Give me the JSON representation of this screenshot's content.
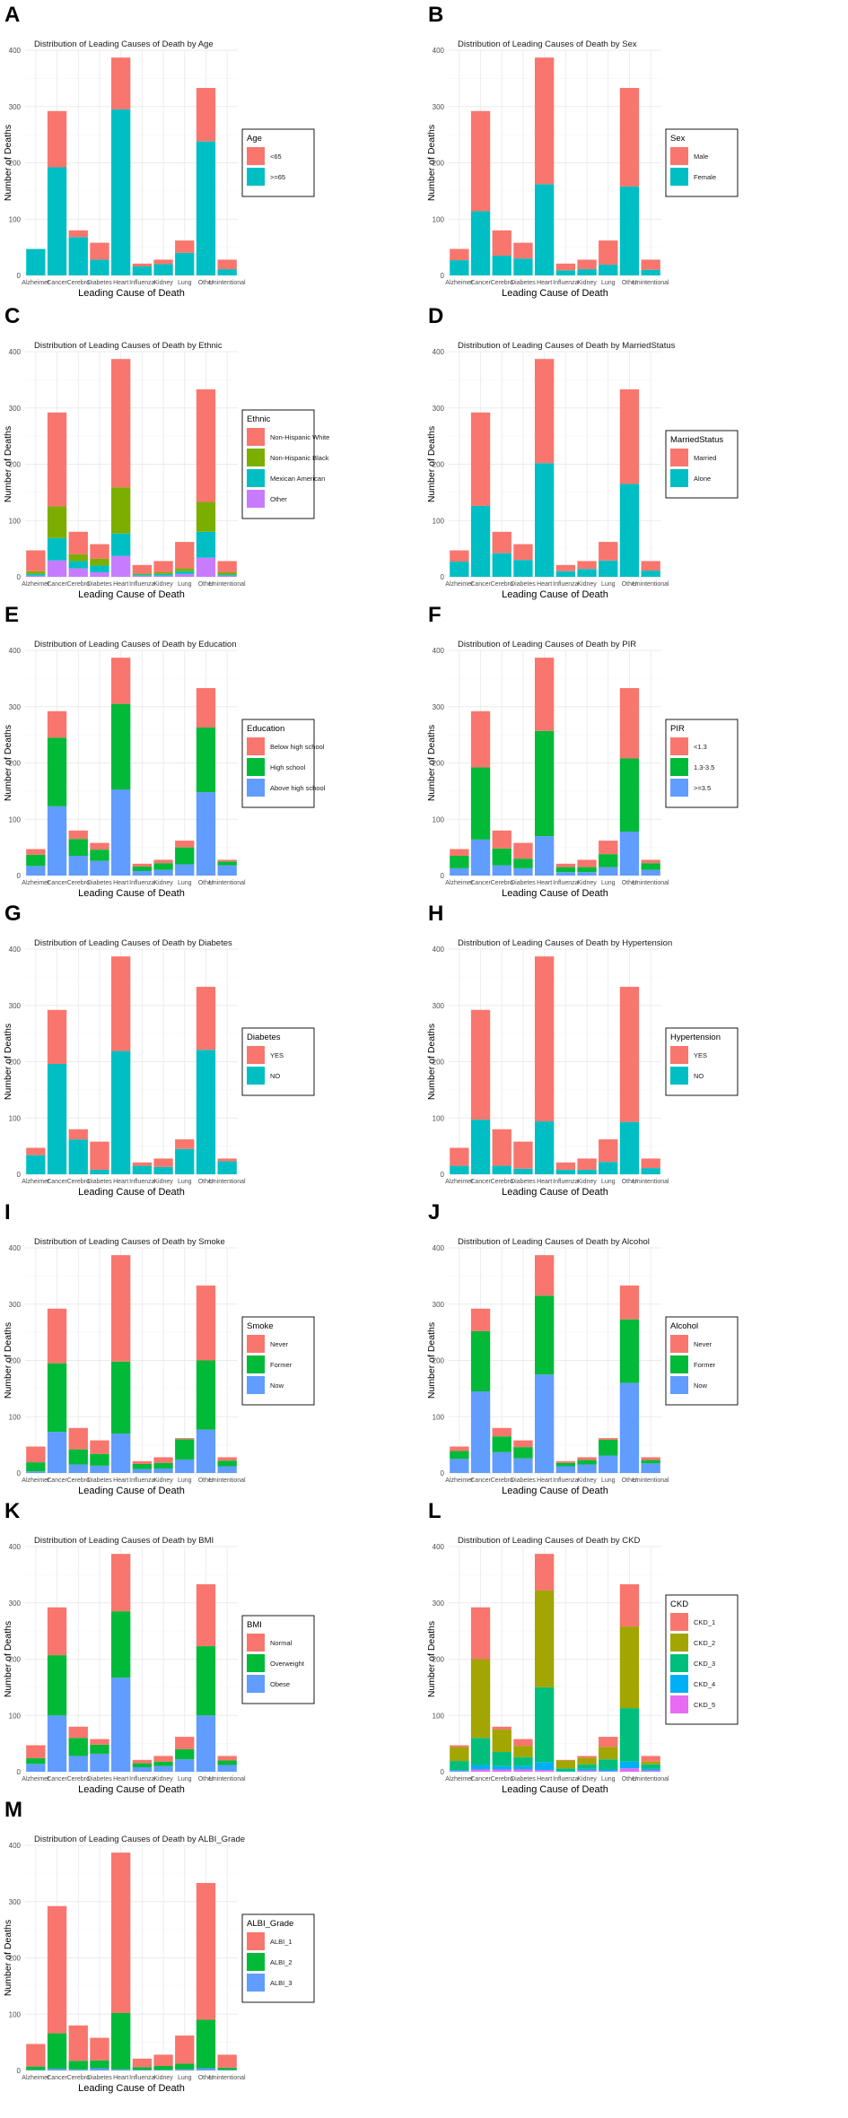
{
  "figure": {
    "y_axis_label": "Number of Deaths",
    "x_axis_label": "Leading Cause of Death"
  },
  "chart_data": [
    {
      "panel": "A",
      "type": "bar",
      "stacked": true,
      "title": "Distribution of Leading Causes of Death by Age",
      "xlabel": "Leading Cause of Death",
      "ylabel": "Number of Deaths",
      "ylim": [
        0,
        400
      ],
      "yticks": [
        0,
        100,
        200,
        300,
        400
      ],
      "categories": [
        "Alzheimer",
        "Cancer",
        "Cerebro",
        "Diabetes",
        "Heart",
        "Influenza",
        "Kidney",
        "Lung",
        "Other",
        "Unintentional"
      ],
      "legend_title": "Age",
      "series": [
        {
          "name": "<65",
          "color": "#F8766D",
          "values": [
            0,
            100,
            12,
            30,
            92,
            5,
            8,
            22,
            95,
            17
          ]
        },
        {
          "name": ">=65",
          "color": "#00BFC4",
          "values": [
            47,
            192,
            68,
            28,
            295,
            16,
            20,
            40,
            238,
            11
          ]
        }
      ]
    },
    {
      "panel": "B",
      "type": "bar",
      "stacked": true,
      "title": "Distribution of Leading Causes of Death by Sex",
      "xlabel": "Leading Cause of Death",
      "ylabel": "Number of Deaths",
      "ylim": [
        0,
        400
      ],
      "yticks": [
        0,
        100,
        200,
        300,
        400
      ],
      "categories": [
        "Alzheimer",
        "Cancer",
        "Cerebro",
        "Diabetes",
        "Heart",
        "Influenza",
        "Kidney",
        "Lung",
        "Other",
        "Unintentional"
      ],
      "legend_title": "Sex",
      "series": [
        {
          "name": "Male",
          "color": "#F8766D",
          "values": [
            20,
            178,
            45,
            28,
            225,
            12,
            17,
            43,
            175,
            18
          ]
        },
        {
          "name": "Female",
          "color": "#00BFC4",
          "values": [
            27,
            114,
            35,
            30,
            162,
            9,
            11,
            19,
            158,
            10
          ]
        }
      ]
    },
    {
      "panel": "C",
      "type": "bar",
      "stacked": true,
      "title": "Distribution of Leading Causes of Death by Ethnic",
      "xlabel": "Leading Cause of Death",
      "ylabel": "Number of Deaths",
      "ylim": [
        0,
        400
      ],
      "yticks": [
        0,
        100,
        200,
        300,
        400
      ],
      "categories": [
        "Alzheimer",
        "Cancer",
        "Cerebro",
        "Diabetes",
        "Heart",
        "Influenza",
        "Kidney",
        "Lung",
        "Other",
        "Unintentional"
      ],
      "legend_title": "Ethnic",
      "series": [
        {
          "name": "Non-Hispanic White",
          "color": "#F8766D",
          "values": [
            37,
            167,
            40,
            26,
            228,
            15,
            20,
            47,
            200,
            20
          ]
        },
        {
          "name": "Non-Hispanic Black",
          "color": "#7CAE00",
          "values": [
            5,
            56,
            12,
            12,
            82,
            2,
            3,
            5,
            53,
            4
          ]
        },
        {
          "name": "Mexican American",
          "color": "#00BFC4",
          "values": [
            3,
            40,
            13,
            12,
            40,
            2,
            3,
            5,
            46,
            2
          ]
        },
        {
          "name": "Other",
          "color": "#C77CFF",
          "values": [
            2,
            29,
            15,
            8,
            37,
            2,
            2,
            5,
            34,
            2
          ]
        }
      ]
    },
    {
      "panel": "D",
      "type": "bar",
      "stacked": true,
      "title": "Distribution of Leading Causes of Death by MarriedStatus",
      "xlabel": "Leading Cause of Death",
      "ylabel": "Number of Deaths",
      "ylim": [
        0,
        400
      ],
      "yticks": [
        0,
        100,
        200,
        300,
        400
      ],
      "categories": [
        "Alzheimer",
        "Cancer",
        "Cerebro",
        "Diabetes",
        "Heart",
        "Influenza",
        "Kidney",
        "Lung",
        "Other",
        "Unintentional"
      ],
      "legend_title": "MarriedStatus",
      "series": [
        {
          "name": "Married",
          "color": "#F8766D",
          "values": [
            20,
            166,
            38,
            28,
            185,
            11,
            14,
            33,
            168,
            17
          ]
        },
        {
          "name": "Alone",
          "color": "#00BFC4",
          "values": [
            27,
            126,
            42,
            30,
            202,
            10,
            14,
            29,
            165,
            11
          ]
        }
      ]
    },
    {
      "panel": "E",
      "type": "bar",
      "stacked": true,
      "title": "Distribution of Leading Causes of Death by Education",
      "xlabel": "Leading Cause of Death",
      "ylabel": "Number of Deaths",
      "ylim": [
        0,
        400
      ],
      "yticks": [
        0,
        100,
        200,
        300,
        400
      ],
      "categories": [
        "Alzheimer",
        "Cancer",
        "Cerebro",
        "Diabetes",
        "Heart",
        "Influenza",
        "Kidney",
        "Lung",
        "Other",
        "Unintentional"
      ],
      "legend_title": "Education",
      "series": [
        {
          "name": "Below high school",
          "color": "#F8766D",
          "values": [
            10,
            47,
            15,
            12,
            82,
            5,
            6,
            12,
            70,
            3
          ]
        },
        {
          "name": "High school",
          "color": "#00BA38",
          "values": [
            20,
            122,
            30,
            20,
            152,
            8,
            12,
            30,
            115,
            7
          ]
        },
        {
          "name": "Above high school",
          "color": "#619CFF",
          "values": [
            17,
            123,
            35,
            26,
            153,
            8,
            10,
            20,
            148,
            18
          ]
        }
      ]
    },
    {
      "panel": "F",
      "type": "bar",
      "stacked": true,
      "title": "Distribution of Leading Causes of Death by PIR",
      "xlabel": "Leading Cause of Death",
      "ylabel": "Number of Deaths",
      "ylim": [
        0,
        400
      ],
      "yticks": [
        0,
        100,
        200,
        300,
        400
      ],
      "categories": [
        "Alzheimer",
        "Cancer",
        "Cerebro",
        "Diabetes",
        "Heart",
        "Influenza",
        "Kidney",
        "Lung",
        "Other",
        "Unintentional"
      ],
      "legend_title": "PIR",
      "series": [
        {
          "name": "<1.3",
          "color": "#F8766D",
          "values": [
            12,
            100,
            32,
            28,
            130,
            6,
            13,
            24,
            125,
            6
          ]
        },
        {
          "name": "1.3-3.5",
          "color": "#00BA38",
          "values": [
            22,
            128,
            30,
            17,
            187,
            9,
            9,
            23,
            130,
            12
          ]
        },
        {
          "name": ">=3.5",
          "color": "#619CFF",
          "values": [
            13,
            64,
            18,
            13,
            70,
            6,
            6,
            15,
            78,
            10
          ]
        }
      ]
    },
    {
      "panel": "G",
      "type": "bar",
      "stacked": true,
      "title": "Distribution of Leading Causes of Death by Diabetes",
      "xlabel": "Leading Cause of Death",
      "ylabel": "Number of Deaths",
      "ylim": [
        0,
        400
      ],
      "yticks": [
        0,
        100,
        200,
        300,
        400
      ],
      "categories": [
        "Alzheimer",
        "Cancer",
        "Cerebro",
        "Diabetes",
        "Heart",
        "Influenza",
        "Kidney",
        "Lung",
        "Other",
        "Unintentional"
      ],
      "legend_title": "Diabetes",
      "series": [
        {
          "name": "YES",
          "color": "#F8766D",
          "values": [
            13,
            96,
            18,
            50,
            168,
            6,
            15,
            17,
            112,
            5
          ]
        },
        {
          "name": "NO",
          "color": "#00BFC4",
          "values": [
            34,
            196,
            62,
            8,
            219,
            15,
            13,
            45,
            221,
            23
          ]
        }
      ]
    },
    {
      "panel": "H",
      "type": "bar",
      "stacked": true,
      "title": "Distribution of Leading Causes of Death by Hypertension",
      "xlabel": "Leading Cause of Death",
      "ylabel": "Number of Deaths",
      "ylim": [
        0,
        400
      ],
      "yticks": [
        0,
        100,
        200,
        300,
        400
      ],
      "categories": [
        "Alzheimer",
        "Cancer",
        "Cerebro",
        "Diabetes",
        "Heart",
        "Influenza",
        "Kidney",
        "Lung",
        "Other",
        "Unintentional"
      ],
      "legend_title": "Hypertension",
      "series": [
        {
          "name": "YES",
          "color": "#F8766D",
          "values": [
            32,
            195,
            65,
            48,
            293,
            13,
            20,
            40,
            240,
            17
          ]
        },
        {
          "name": "NO",
          "color": "#00BFC4",
          "values": [
            15,
            97,
            15,
            10,
            94,
            8,
            8,
            22,
            93,
            11
          ]
        }
      ]
    },
    {
      "panel": "I",
      "type": "bar",
      "stacked": true,
      "title": "Distribution of Leading Causes of Death by Smoke",
      "xlabel": "Leading Cause of Death",
      "ylabel": "Number of Deaths",
      "ylim": [
        0,
        400
      ],
      "yticks": [
        0,
        100,
        200,
        300,
        400
      ],
      "categories": [
        "Alzheimer",
        "Cancer",
        "Cerebro",
        "Diabetes",
        "Heart",
        "Influenza",
        "Kidney",
        "Lung",
        "Other",
        "Unintentional"
      ],
      "legend_title": "Smoke",
      "series": [
        {
          "name": "Never",
          "color": "#F8766D",
          "values": [
            28,
            97,
            38,
            24,
            189,
            5,
            10,
            2,
            133,
            6
          ]
        },
        {
          "name": "Former",
          "color": "#00BA38",
          "values": [
            16,
            122,
            27,
            21,
            128,
            9,
            10,
            36,
            123,
            10
          ]
        },
        {
          "name": "Now",
          "color": "#619CFF",
          "values": [
            3,
            73,
            15,
            13,
            70,
            7,
            8,
            24,
            77,
            12
          ]
        }
      ]
    },
    {
      "panel": "J",
      "type": "bar",
      "stacked": true,
      "title": "Distribution of Leading Causes of Death by Alcohol",
      "xlabel": "Leading Cause of Death",
      "ylabel": "Number of Deaths",
      "ylim": [
        0,
        400
      ],
      "yticks": [
        0,
        100,
        200,
        300,
        400
      ],
      "categories": [
        "Alzheimer",
        "Cancer",
        "Cerebro",
        "Diabetes",
        "Heart",
        "Influenza",
        "Kidney",
        "Lung",
        "Other",
        "Unintentional"
      ],
      "legend_title": "Alcohol",
      "series": [
        {
          "name": "Never",
          "color": "#F8766D",
          "values": [
            8,
            40,
            15,
            12,
            72,
            3,
            5,
            3,
            60,
            5
          ]
        },
        {
          "name": "Former",
          "color": "#00BA38",
          "values": [
            14,
            107,
            28,
            20,
            140,
            6,
            8,
            28,
            113,
            6
          ]
        },
        {
          "name": "Now",
          "color": "#619CFF",
          "values": [
            25,
            145,
            37,
            26,
            175,
            12,
            15,
            31,
            160,
            17
          ]
        }
      ]
    },
    {
      "panel": "K",
      "type": "bar",
      "stacked": true,
      "title": "Distribution of Leading Causes of Death by BMI",
      "xlabel": "Leading Cause of Death",
      "ylabel": "Number of Deaths",
      "ylim": [
        0,
        400
      ],
      "yticks": [
        0,
        100,
        200,
        300,
        400
      ],
      "categories": [
        "Alzheimer",
        "Cancer",
        "Cerebro",
        "Diabetes",
        "Heart",
        "Influenza",
        "Kidney",
        "Lung",
        "Other",
        "Unintentional"
      ],
      "legend_title": "BMI",
      "series": [
        {
          "name": "Normal",
          "color": "#F8766D",
          "values": [
            23,
            85,
            20,
            10,
            102,
            6,
            10,
            22,
            110,
            8
          ]
        },
        {
          "name": "Overweight",
          "color": "#00BA38",
          "values": [
            10,
            107,
            32,
            16,
            118,
            7,
            8,
            18,
            123,
            8
          ]
        },
        {
          "name": "Obese",
          "color": "#619CFF",
          "values": [
            14,
            100,
            28,
            32,
            167,
            8,
            10,
            22,
            100,
            12
          ]
        }
      ]
    },
    {
      "panel": "L",
      "type": "bar",
      "stacked": true,
      "title": "Distribution of Leading Causes of Death by CKD",
      "xlabel": "Leading Cause of Death",
      "ylabel": "Number of Deaths",
      "ylim": [
        0,
        400
      ],
      "yticks": [
        0,
        100,
        200,
        300,
        400
      ],
      "categories": [
        "Alzheimer",
        "Cancer",
        "Cerebro",
        "Diabetes",
        "Heart",
        "Influenza",
        "Kidney",
        "Lung",
        "Other",
        "Unintentional"
      ],
      "legend_title": "CKD",
      "series": [
        {
          "name": "CKD_1",
          "color": "#F8766D",
          "values": [
            3,
            92,
            5,
            12,
            65,
            1,
            3,
            18,
            75,
            10
          ]
        },
        {
          "name": "CKD_2",
          "color": "#A3A500",
          "values": [
            25,
            140,
            40,
            20,
            172,
            14,
            12,
            22,
            145,
            5
          ]
        },
        {
          "name": "CKD_3",
          "color": "#00BF7D",
          "values": [
            16,
            48,
            25,
            16,
            133,
            5,
            8,
            18,
            95,
            8
          ]
        },
        {
          "name": "CKD_4",
          "color": "#00B0F6",
          "values": [
            2,
            8,
            6,
            6,
            14,
            1,
            3,
            3,
            12,
            3
          ]
        },
        {
          "name": "CKD_5",
          "color": "#E76BF3",
          "values": [
            1,
            4,
            4,
            4,
            3,
            0,
            2,
            1,
            6,
            2
          ]
        }
      ]
    },
    {
      "panel": "M",
      "type": "bar",
      "stacked": true,
      "title": "Distribution of Leading Causes of Death by ALBI_Grade",
      "xlabel": "Leading Cause of Death",
      "ylabel": "Number of Deaths",
      "ylim": [
        0,
        400
      ],
      "yticks": [
        0,
        100,
        200,
        300,
        400
      ],
      "categories": [
        "Alzheimer",
        "Cancer",
        "Cerebro",
        "Diabetes",
        "Heart",
        "Influenza",
        "Kidney",
        "Lung",
        "Other",
        "Unintentional"
      ],
      "legend_title": "ALBI_Grade",
      "series": [
        {
          "name": "ALBI_1",
          "color": "#F8766D",
          "values": [
            40,
            226,
            63,
            40,
            285,
            15,
            20,
            50,
            243,
            23
          ]
        },
        {
          "name": "ALBI_2",
          "color": "#00BA38",
          "values": [
            6,
            63,
            15,
            14,
            100,
            5,
            7,
            10,
            86,
            4
          ]
        },
        {
          "name": "ALBI_3",
          "color": "#619CFF",
          "values": [
            1,
            3,
            2,
            4,
            2,
            1,
            1,
            2,
            4,
            1
          ]
        }
      ]
    }
  ]
}
